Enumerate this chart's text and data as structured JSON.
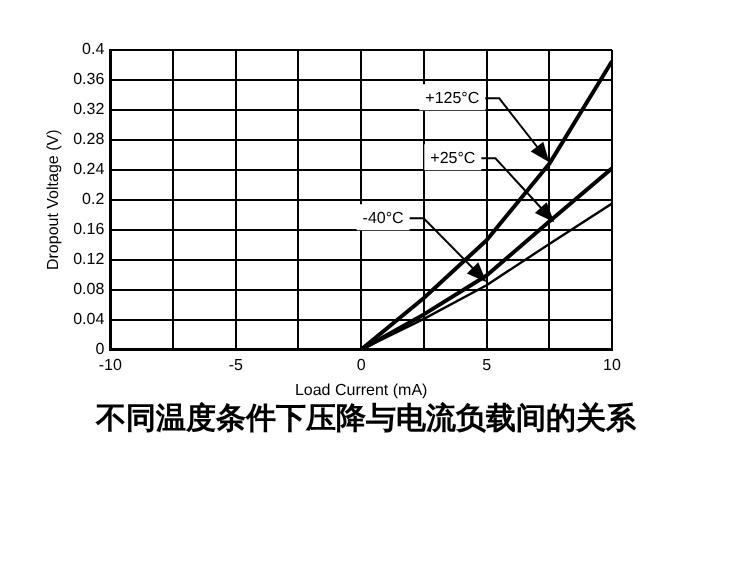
{
  "chart_data": {
    "type": "line",
    "title": "不同温度条件下压降与电流负载间的关系",
    "xlabel": "Load Current (mA)",
    "ylabel": "Dropout Voltage (V)",
    "xlim": [
      -10,
      10
    ],
    "xticks": [
      -10,
      {
        "value": -7.5,
        "label": null
      },
      -5,
      {
        "value": -2.5,
        "label": null
      },
      0,
      {
        "value": 2.5,
        "label": null
      },
      5,
      {
        "value": 7.5,
        "label": null
      },
      10
    ],
    "ylim": [
      0,
      0.4
    ],
    "yticks": [
      0,
      0.04,
      0.08,
      0.12,
      0.16,
      0.2,
      0.24,
      0.28,
      0.32,
      0.36,
      0.4
    ],
    "grid": true,
    "legend": false,
    "marker": "none",
    "line_style": "solid",
    "series": [
      {
        "color": "#000000",
        "x": [
          0,
          2.5,
          5,
          7.5,
          10
        ],
        "values": [
          0,
          0.069,
          0.146,
          0.248,
          0.385
        ]
      },
      {
        "color": "#000000",
        "x": [
          0,
          2.5,
          5,
          7.5,
          10
        ],
        "values": [
          0,
          0.047,
          0.099,
          0.171,
          0.242
        ]
      },
      {
        "color": "#000000",
        "x": [
          0,
          2.5,
          5,
          7.5,
          10
        ],
        "values": [
          0,
          0.041,
          0.086,
          0.141,
          0.195
        ]
      }
    ],
    "annotations": [
      {
        "text": "+125°C",
        "x": 7.5,
        "y": 0.25
      },
      {
        "text": "+25°C",
        "x": 7.7,
        "y": 0.17
      },
      {
        "text": "-40°C",
        "x": 5,
        "y": 0.09
      }
    ]
  }
}
